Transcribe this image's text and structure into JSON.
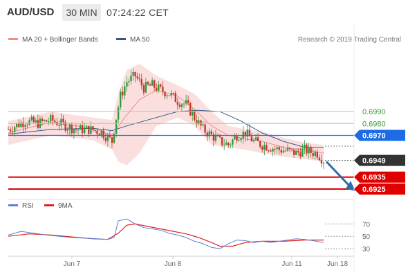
{
  "header": {
    "symbol": "AUD/USD",
    "timeframe": "30 MIN",
    "time": "07:24:22 CET"
  },
  "legend": [
    {
      "label": "MA 20 + Bollinger Bands",
      "color": "#f28b8b"
    },
    {
      "label": "MA 50",
      "color": "#2e5a88"
    }
  ],
  "credit": "Research © 2019 Trading Central",
  "rsi_legend": [
    {
      "label": "RSI",
      "color": "#5b7fd6"
    },
    {
      "label": "9MA",
      "color": "#e02020"
    }
  ],
  "levels": [
    {
      "value": 0.699,
      "label": "0.6990",
      "kind": "resistance-text"
    },
    {
      "value": 0.698,
      "label": "0.6980",
      "kind": "resistance-text"
    },
    {
      "value": 0.697,
      "label": "0.6970",
      "kind": "pivot"
    },
    {
      "value": 0.6949,
      "label": "0.6949",
      "kind": "last"
    },
    {
      "value": 0.6935,
      "label": "0.6935",
      "kind": "support"
    },
    {
      "value": 0.6925,
      "label": "0.6925",
      "kind": "support"
    }
  ],
  "colors": {
    "up": "#2f9a3f",
    "down": "#c0392b",
    "band": "#fad4d4",
    "ma20": "#f08b8b",
    "ma50": "#2e5a88",
    "pivot": "#1e6be6",
    "support": "#e00000",
    "resistance_line": "#a8d08d",
    "resistance_text": "#3a9a3a",
    "last_bg": "#333333",
    "arrow": "#2e6cb0"
  },
  "chart_data": {
    "type": "candlestick",
    "price_range": [
      0.6918,
      0.704
    ],
    "x_ticks": [
      "Jun 7",
      "Jun 8",
      "Jun 11",
      "Jun 18"
    ],
    "candles_outline": [
      [
        0,
        0.6975
      ],
      [
        8,
        0.6982
      ],
      [
        14,
        0.698
      ],
      [
        20,
        0.6983
      ],
      [
        26,
        0.6979
      ],
      [
        32,
        0.6975
      ],
      [
        38,
        0.6975
      ],
      [
        44,
        0.6973
      ],
      [
        49,
        0.6965
      ],
      [
        51,
        0.6985
      ],
      [
        53,
        0.7003
      ],
      [
        56,
        0.7015
      ],
      [
        60,
        0.702
      ],
      [
        64,
        0.701
      ],
      [
        68,
        0.7012
      ],
      [
        72,
        0.7008
      ],
      [
        76,
        0.7005
      ],
      [
        80,
        0.6999
      ],
      [
        84,
        0.6996
      ],
      [
        88,
        0.6985
      ],
      [
        92,
        0.6975
      ],
      [
        96,
        0.697
      ],
      [
        100,
        0.6965
      ],
      [
        104,
        0.6962
      ],
      [
        108,
        0.697
      ],
      [
        112,
        0.6972
      ],
      [
        116,
        0.6965
      ],
      [
        120,
        0.6962
      ],
      [
        124,
        0.696
      ],
      [
        128,
        0.6958
      ],
      [
        132,
        0.6957
      ],
      [
        136,
        0.6955
      ],
      [
        140,
        0.6958
      ],
      [
        143,
        0.6956
      ],
      [
        146,
        0.6955
      ],
      [
        149,
        0.6949
      ]
    ],
    "ma20": [
      [
        0,
        0.6972
      ],
      [
        20,
        0.6981
      ],
      [
        40,
        0.6976
      ],
      [
        49,
        0.697
      ],
      [
        55,
        0.6985
      ],
      [
        62,
        0.7
      ],
      [
        70,
        0.7008
      ],
      [
        80,
        0.7003
      ],
      [
        88,
        0.6992
      ],
      [
        96,
        0.6978
      ],
      [
        104,
        0.697
      ],
      [
        112,
        0.6967
      ],
      [
        120,
        0.6965
      ],
      [
        130,
        0.696
      ],
      [
        140,
        0.6958
      ],
      [
        149,
        0.6955
      ]
    ],
    "bb_upper": [
      [
        0,
        0.6982
      ],
      [
        20,
        0.699
      ],
      [
        40,
        0.6985
      ],
      [
        49,
        0.6983
      ],
      [
        52,
        0.7005
      ],
      [
        56,
        0.7025
      ],
      [
        62,
        0.703
      ],
      [
        70,
        0.702
      ],
      [
        80,
        0.7012
      ],
      [
        88,
        0.7005
      ],
      [
        96,
        0.699
      ],
      [
        104,
        0.6978
      ],
      [
        112,
        0.6975
      ],
      [
        120,
        0.6973
      ],
      [
        130,
        0.6968
      ],
      [
        140,
        0.6964
      ],
      [
        149,
        0.6962
      ]
    ],
    "bb_lower": [
      [
        0,
        0.6962
      ],
      [
        20,
        0.697
      ],
      [
        40,
        0.6966
      ],
      [
        49,
        0.6958
      ],
      [
        52,
        0.6948
      ],
      [
        56,
        0.6945
      ],
      [
        62,
        0.6955
      ],
      [
        70,
        0.6978
      ],
      [
        80,
        0.6985
      ],
      [
        88,
        0.6978
      ],
      [
        96,
        0.6962
      ],
      [
        104,
        0.696
      ],
      [
        112,
        0.6958
      ],
      [
        120,
        0.6955
      ],
      [
        130,
        0.6952
      ],
      [
        140,
        0.695
      ],
      [
        149,
        0.6948
      ]
    ],
    "ma50": [
      [
        0,
        0.6971
      ],
      [
        20,
        0.6975
      ],
      [
        40,
        0.6976
      ],
      [
        49,
        0.6974
      ],
      [
        56,
        0.6978
      ],
      [
        70,
        0.6985
      ],
      [
        80,
        0.699
      ],
      [
        90,
        0.6991
      ],
      [
        100,
        0.699
      ],
      [
        110,
        0.6982
      ],
      [
        120,
        0.6972
      ],
      [
        130,
        0.6965
      ],
      [
        140,
        0.696
      ],
      [
        149,
        0.696
      ]
    ],
    "rsi": [
      [
        0,
        52
      ],
      [
        6,
        58
      ],
      [
        12,
        55
      ],
      [
        18,
        52
      ],
      [
        24,
        50
      ],
      [
        30,
        48
      ],
      [
        36,
        47
      ],
      [
        42,
        46
      ],
      [
        47,
        45
      ],
      [
        50,
        48
      ],
      [
        52,
        75
      ],
      [
        56,
        78
      ],
      [
        60,
        70
      ],
      [
        64,
        64
      ],
      [
        68,
        62
      ],
      [
        72,
        60
      ],
      [
        76,
        55
      ],
      [
        80,
        52
      ],
      [
        84,
        48
      ],
      [
        88,
        42
      ],
      [
        92,
        38
      ],
      [
        96,
        32
      ],
      [
        100,
        30
      ],
      [
        104,
        38
      ],
      [
        108,
        44
      ],
      [
        112,
        43
      ],
      [
        116,
        40
      ],
      [
        120,
        42
      ],
      [
        124,
        40
      ],
      [
        128,
        42
      ],
      [
        132,
        44
      ],
      [
        136,
        46
      ],
      [
        140,
        45
      ],
      [
        144,
        43
      ],
      [
        149,
        40
      ]
    ],
    "rsi_ma": [
      [
        0,
        50
      ],
      [
        10,
        54
      ],
      [
        20,
        52
      ],
      [
        30,
        49
      ],
      [
        40,
        46
      ],
      [
        47,
        45
      ],
      [
        52,
        55
      ],
      [
        56,
        68
      ],
      [
        60,
        70
      ],
      [
        66,
        66
      ],
      [
        72,
        62
      ],
      [
        78,
        58
      ],
      [
        84,
        54
      ],
      [
        90,
        48
      ],
      [
        96,
        40
      ],
      [
        100,
        34
      ],
      [
        106,
        34
      ],
      [
        112,
        40
      ],
      [
        120,
        42
      ],
      [
        130,
        42
      ],
      [
        140,
        44
      ],
      [
        149,
        44
      ]
    ],
    "rsi_ticks": [
      70,
      50,
      30
    ],
    "rsi_range": [
      20,
      85
    ]
  }
}
